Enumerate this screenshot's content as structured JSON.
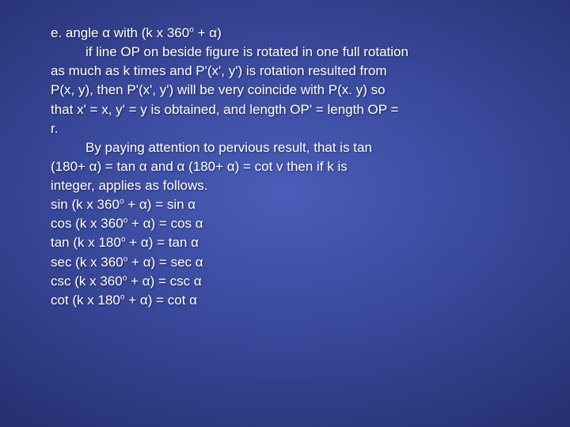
{
  "slide": {
    "text_color": "#ffffff",
    "font_family": "Verdana",
    "font_size_pt": 13,
    "background": {
      "type": "radial-gradient",
      "center_color": "#4a5db8",
      "edge_color": "#0d1138"
    },
    "lines": [
      {
        "indent": "indent1",
        "html": "e. angle α with (k x 360<sup>o</sup> + α)"
      },
      {
        "indent": "indent2",
        "html": "if line OP on beside figure is rotated in one full rotation"
      },
      {
        "indent": "indent1",
        "html": "as much as k times and P'(x', y') is rotation resulted from"
      },
      {
        "indent": "indent1",
        "html": "P(x, y), then P'(x', y') will be very coincide with P(x. y) so"
      },
      {
        "indent": "indent1",
        "html": "that x' = x, y' = y is obtained, and length OP' = length OP ="
      },
      {
        "indent": "indent1",
        "html": "r."
      },
      {
        "indent": "indent2",
        "html": "By paying attention to pervious result, that is tan"
      },
      {
        "indent": "indent1",
        "html": "(180+ α) = tan α and α (180+ α) = cot v then if k is"
      },
      {
        "indent": "indent1",
        "html": "integer, applies as follows."
      },
      {
        "indent": "indent1",
        "html": "sin (k x 360<sup>o</sup> + α) = sin α"
      },
      {
        "indent": "indent1",
        "html": "cos (k x 360<sup>o</sup> + α) = cos α"
      },
      {
        "indent": "indent1",
        "html": "tan (k x 180<sup>o</sup> + α) = tan α"
      },
      {
        "indent": "indent1",
        "html": "sec (k x 360<sup>o</sup> + α) = sec α"
      },
      {
        "indent": "indent1",
        "html": "csc (k x 360<sup>o</sup> + α) = csc α"
      },
      {
        "indent": "indent1",
        "html": "cot (k x 180<sup>o</sup> + α) = cot α"
      }
    ]
  }
}
